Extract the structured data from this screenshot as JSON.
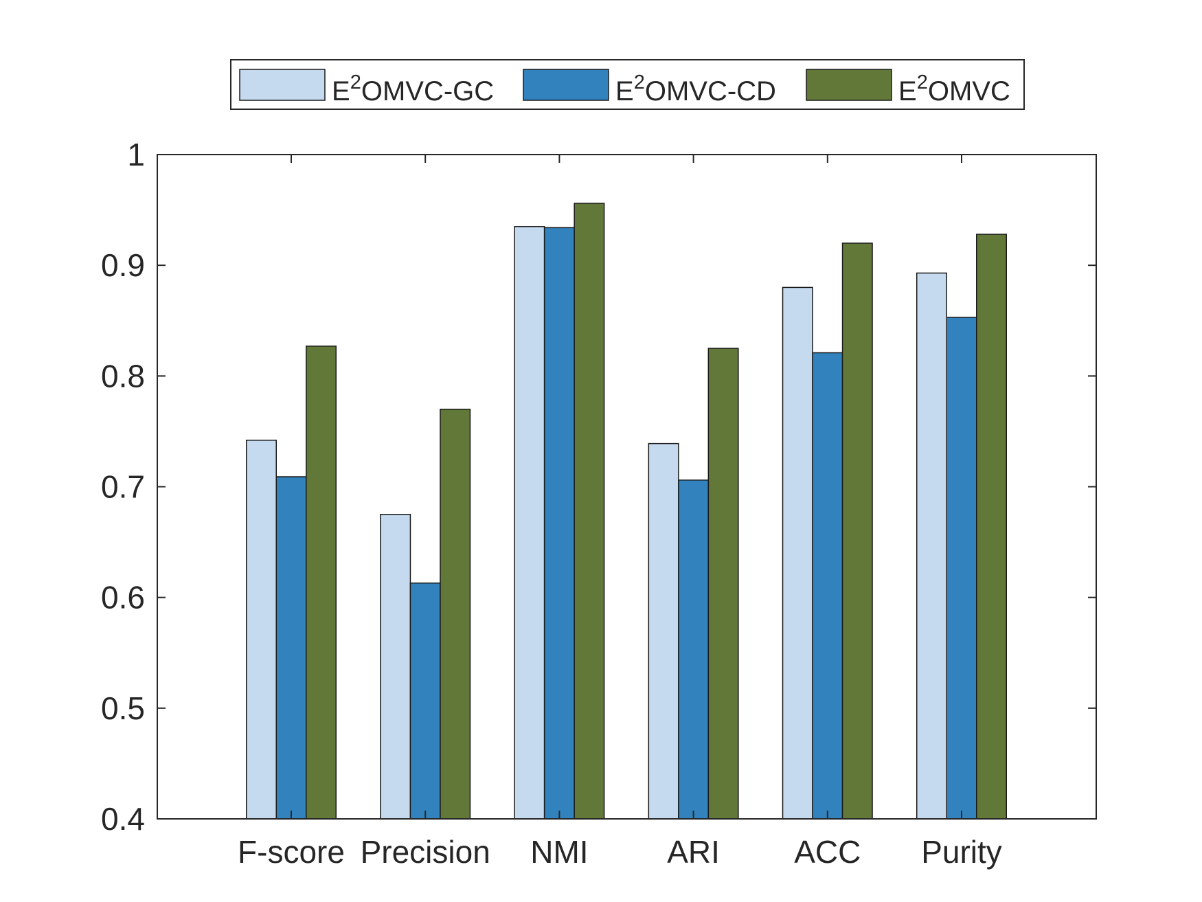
{
  "chart_data": {
    "type": "bar",
    "categories": [
      "F-score",
      "Precision",
      "NMI",
      "ARI",
      "ACC",
      "Purity"
    ],
    "series": [
      {
        "name_base": "E",
        "name_sup": "2",
        "name_rest": "OMVC-GC",
        "color": "#c5d9ef",
        "values": [
          0.742,
          0.675,
          0.935,
          0.739,
          0.88,
          0.893
        ]
      },
      {
        "name_base": "E",
        "name_sup": "2",
        "name_rest": "OMVC-CD",
        "color": "#3182bd",
        "values": [
          0.709,
          0.613,
          0.934,
          0.706,
          0.821,
          0.853
        ]
      },
      {
        "name_base": "E",
        "name_sup": "2",
        "name_rest": "OMVC",
        "color": "#627839",
        "values": [
          0.827,
          0.77,
          0.956,
          0.825,
          0.92,
          0.928
        ]
      }
    ],
    "ylim": [
      0.4,
      1.0
    ],
    "yticks": [
      "0.4",
      "0.5",
      "0.6",
      "0.7",
      "0.8",
      "0.9",
      "1"
    ],
    "grid": false,
    "legend_position": "top-outside"
  }
}
